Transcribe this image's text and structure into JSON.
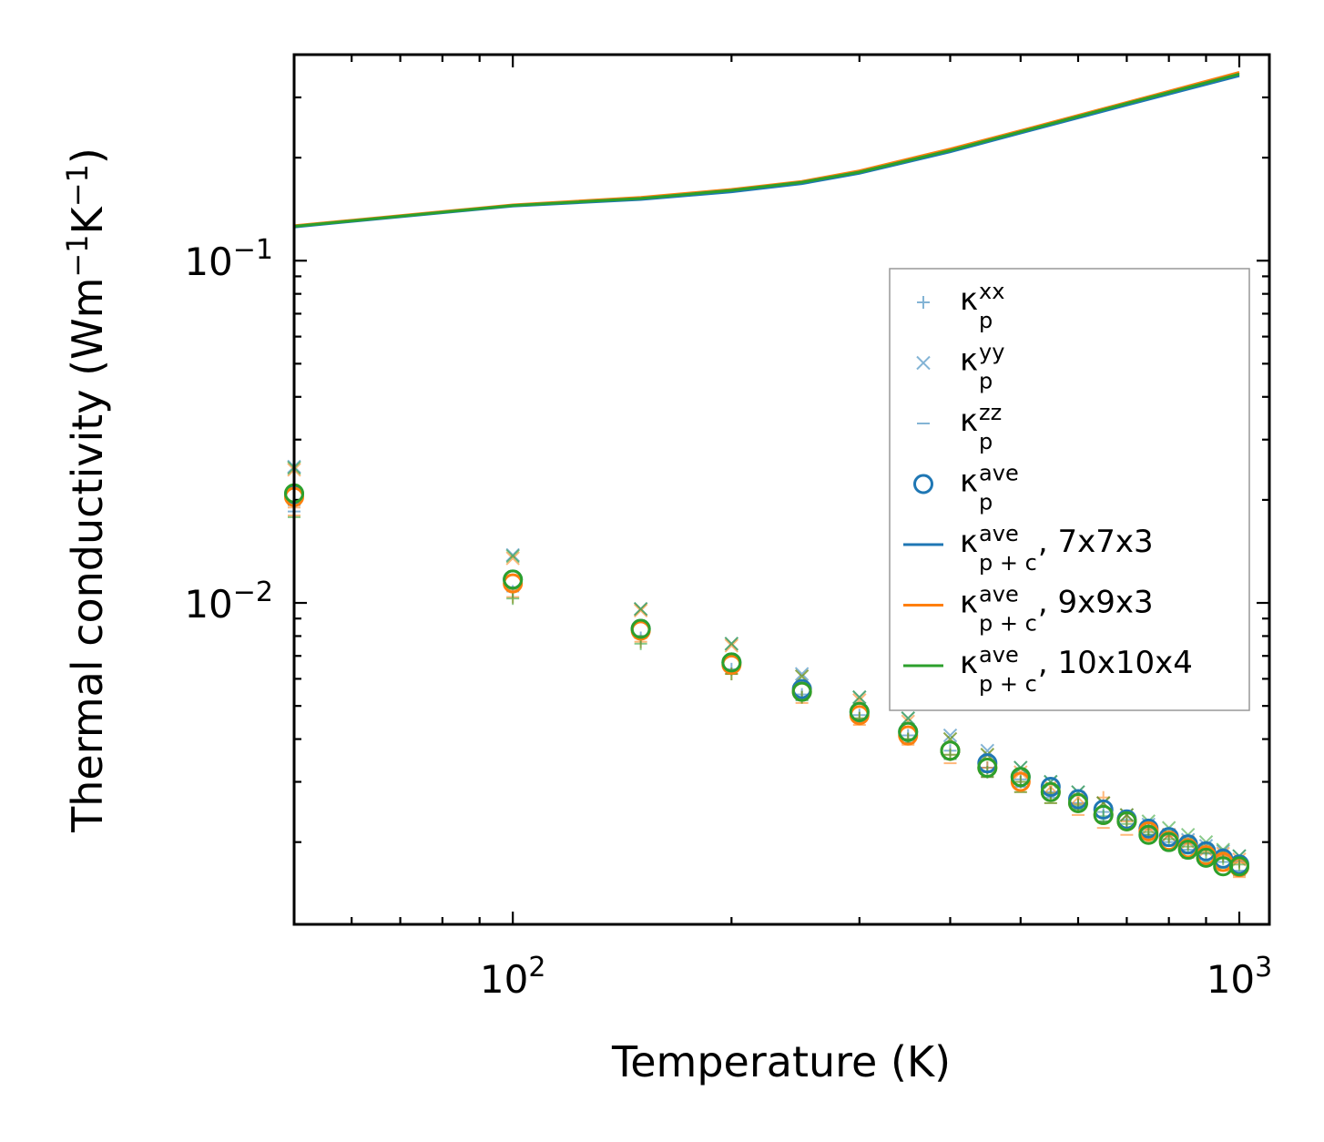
{
  "chart_data": {
    "type": "scatter+line",
    "xscale": "log",
    "yscale": "log",
    "xlabel": "Temperature (K)",
    "ylabel": {
      "main": "Thermal conductivity (Wm",
      "exp1": "−1",
      "mid": "K",
      "exp2": "−1",
      "end": ")"
    },
    "xlim": [
      50,
      1100
    ],
    "ylim": [
      0.00115,
      0.4
    ],
    "x_ticks": [
      {
        "value": 100,
        "base": "10",
        "exp": "2"
      },
      {
        "value": 1000,
        "base": "10",
        "exp": "3"
      }
    ],
    "y_ticks": [
      {
        "value": 0.01,
        "base": "10",
        "exp": "−2"
      },
      {
        "value": 0.1,
        "base": "10",
        "exp": "−1"
      }
    ],
    "colors": {
      "c1": "#1f77b4",
      "c2": "#ff7f0e",
      "c3": "#2ca02c"
    },
    "temperatures": [
      50,
      100,
      150,
      200,
      250,
      300,
      350,
      400,
      450,
      500,
      550,
      600,
      650,
      700,
      750,
      800,
      850,
      900,
      950,
      1000
    ],
    "lines": [
      {
        "name": "7x7x3",
        "color": "#1f77b4",
        "points": [
          [
            50,
            0.1255
          ],
          [
            100,
            0.1445
          ],
          [
            150,
            0.151
          ],
          [
            200,
            0.159
          ],
          [
            250,
            0.168
          ],
          [
            300,
            0.18
          ],
          [
            400,
            0.208
          ],
          [
            500,
            0.236
          ],
          [
            700,
            0.285
          ],
          [
            1000,
            0.347
          ]
        ]
      },
      {
        "name": "9x9x3",
        "color": "#ff7f0e",
        "points": [
          [
            50,
            0.1265
          ],
          [
            100,
            0.1455
          ],
          [
            150,
            0.153
          ],
          [
            200,
            0.1615
          ],
          [
            250,
            0.1705
          ],
          [
            300,
            0.183
          ],
          [
            400,
            0.212
          ],
          [
            500,
            0.24
          ],
          [
            700,
            0.29
          ],
          [
            1000,
            0.355
          ]
        ]
      },
      {
        "name": "10x10x4",
        "color": "#2ca02c",
        "points": [
          [
            50,
            0.126
          ],
          [
            100,
            0.145
          ],
          [
            150,
            0.152
          ],
          [
            200,
            0.1605
          ],
          [
            250,
            0.1695
          ],
          [
            300,
            0.1815
          ],
          [
            400,
            0.21
          ],
          [
            500,
            0.238
          ],
          [
            700,
            0.288
          ],
          [
            1000,
            0.351
          ]
        ]
      }
    ],
    "series": [
      {
        "name": "7x7x3",
        "color": "#1f77b4",
        "kxx": [
          0.0185,
          0.0108,
          0.0079,
          0.0064,
          0.0054,
          0.0047,
          0.0041,
          0.0037,
          0.0033,
          0.00305,
          0.0028,
          0.0026,
          0.00245,
          0.00232,
          0.0022,
          0.0021,
          0.002,
          0.00192,
          0.00184,
          0.00176
        ],
        "kyy": [
          0.025,
          0.0138,
          0.0096,
          0.0076,
          0.0062,
          0.0053,
          0.0046,
          0.0041,
          0.0037,
          0.0033,
          0.003,
          0.0028,
          0.0026,
          0.0024,
          0.00225,
          0.0021,
          0.00203,
          0.00195,
          0.00188,
          0.00182
        ],
        "kzz": [
          0.0193,
          0.0111,
          0.008,
          0.0063,
          0.0052,
          0.0045,
          0.0039,
          0.0035,
          0.0031,
          0.0029,
          0.0027,
          0.0025,
          0.0023,
          0.0022,
          0.0021,
          0.002,
          0.0019,
          0.00185,
          0.00175,
          0.00165
        ],
        "kave": [
          0.0208,
          0.0117,
          0.0084,
          0.0067,
          0.0056,
          0.0048,
          0.0042,
          0.0037,
          0.0034,
          0.0031,
          0.0029,
          0.00267,
          0.00249,
          0.00233,
          0.00219,
          0.00207,
          0.00197,
          0.00188,
          0.00179,
          0.00172
        ]
      },
      {
        "name": "9x9x3",
        "color": "#ff7f0e",
        "kxx": [
          0.018,
          0.0104,
          0.0077,
          0.0062,
          0.0053,
          0.0046,
          0.004,
          0.0036,
          0.0033,
          0.003,
          0.00278,
          0.00258,
          0.0027,
          0.0023,
          0.00218,
          0.00208,
          0.00198,
          0.0019,
          0.00182,
          0.00174
        ],
        "kyy": [
          0.0245,
          0.0135,
          0.0095,
          0.0075,
          0.0061,
          0.0052,
          0.0045,
          0.004,
          0.0036,
          0.0032,
          0.0029,
          0.0027,
          0.0026,
          0.0024,
          0.0022,
          0.0021,
          0.002,
          0.0019,
          0.00185,
          0.00178
        ],
        "kzz": [
          0.019,
          0.0109,
          0.0079,
          0.0062,
          0.0051,
          0.0044,
          0.00385,
          0.0034,
          0.0031,
          0.0028,
          0.0026,
          0.0024,
          0.0022,
          0.0021,
          0.002,
          0.0019,
          0.0018,
          0.00172,
          0.00165,
          0.00158
        ],
        "kave": [
          0.0204,
          0.0114,
          0.0083,
          0.0066,
          0.0055,
          0.0047,
          0.0041,
          0.0037,
          0.0033,
          0.003,
          0.0028,
          0.0026,
          0.0024,
          0.0023,
          0.00215,
          0.00202,
          0.00192,
          0.00183,
          0.00175,
          0.00169
        ]
      },
      {
        "name": "10x10x4",
        "color": "#2ca02c",
        "kxx": [
          0.0178,
          0.0103,
          0.0076,
          0.0062,
          0.0053,
          0.0046,
          0.004,
          0.0036,
          0.0032,
          0.003,
          0.00277,
          0.00256,
          0.00238,
          0.00226,
          0.00214,
          0.00204,
          0.00194,
          0.00186,
          0.00179,
          0.00172
        ],
        "kyy": [
          0.0248,
          0.0137,
          0.0096,
          0.0076,
          0.0061,
          0.0053,
          0.0046,
          0.004,
          0.0036,
          0.0033,
          0.003,
          0.0028,
          0.0026,
          0.0024,
          0.0023,
          0.0022,
          0.0021,
          0.002,
          0.0019,
          0.00182
        ],
        "kzz": [
          0.0194,
          0.011,
          0.008,
          0.0063,
          0.0052,
          0.0045,
          0.0039,
          0.0035,
          0.0031,
          0.0028,
          0.0026,
          0.0025,
          0.0023,
          0.0022,
          0.0021,
          0.00195,
          0.00185,
          0.00175,
          0.00168,
          0.0016
        ],
        "kave": [
          0.0209,
          0.0117,
          0.0084,
          0.0067,
          0.0055,
          0.0048,
          0.0042,
          0.0037,
          0.0033,
          0.0031,
          0.0028,
          0.0026,
          0.0024,
          0.0023,
          0.0021,
          0.002,
          0.0019,
          0.0018,
          0.0017,
          0.0017
        ]
      }
    ],
    "legend": {
      "placement": "center-right",
      "entries": [
        {
          "marker": "plus",
          "symbol": "κ",
          "sub": "p",
          "sup": "xx",
          "suffix": ""
        },
        {
          "marker": "cross",
          "symbol": "κ",
          "sub": "p",
          "sup": "yy",
          "suffix": ""
        },
        {
          "marker": "dash",
          "symbol": "κ",
          "sub": "p",
          "sup": "zz",
          "suffix": ""
        },
        {
          "marker": "circle",
          "symbol": "κ",
          "sub": "p",
          "sup": "ave",
          "suffix": ""
        },
        {
          "marker": "line",
          "color": "#1f77b4",
          "symbol": "κ",
          "sub": "p + c",
          "sup": "ave",
          "suffix": ", 7x7x3"
        },
        {
          "marker": "line",
          "color": "#ff7f0e",
          "symbol": "κ",
          "sub": "p + c",
          "sup": "ave",
          "suffix": ", 9x9x3"
        },
        {
          "marker": "line",
          "color": "#2ca02c",
          "symbol": "κ",
          "sub": "p + c",
          "sup": "ave",
          "suffix": ", 10x10x4"
        }
      ]
    }
  }
}
